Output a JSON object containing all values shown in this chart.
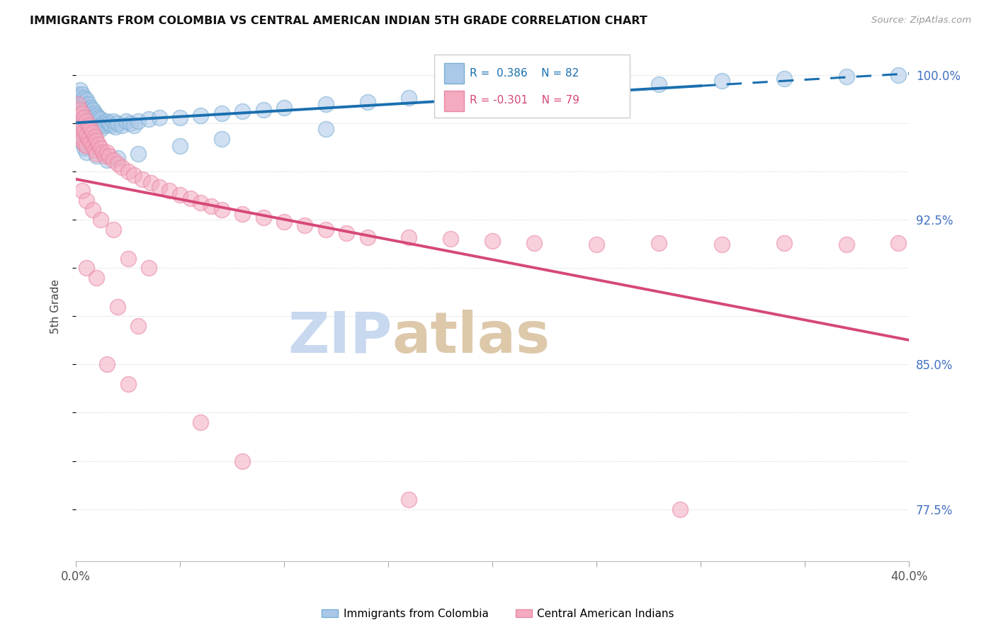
{
  "title": "IMMIGRANTS FROM COLOMBIA VS CENTRAL AMERICAN INDIAN 5TH GRADE CORRELATION CHART",
  "source": "Source: ZipAtlas.com",
  "ylabel": "5th Grade",
  "xlim": [
    0.0,
    0.4
  ],
  "ylim": [
    0.748,
    1.012
  ],
  "R_blue": 0.386,
  "N_blue": 82,
  "R_pink": -0.301,
  "N_pink": 79,
  "blue_face": "#aac8e8",
  "blue_edge": "#7aafd4",
  "pink_face": "#f4aabf",
  "pink_edge": "#e888a4",
  "trend_blue": "#1a6faf",
  "trend_pink": "#d64878",
  "watermark_zip_color": "#c8d8ee",
  "watermark_atlas_color": "#d8c8b8",
  "ytick_vals": [
    0.775,
    0.8,
    0.825,
    0.85,
    0.875,
    0.9,
    0.925,
    0.95,
    0.975,
    1.0
  ],
  "ytick_labels": [
    "77.5%",
    "",
    "",
    "85.0%",
    "",
    "",
    "92.5%",
    "",
    "",
    "100.0%"
  ],
  "xtick_positions": [
    0.0,
    0.05,
    0.1,
    0.15,
    0.2,
    0.25,
    0.3,
    0.35,
    0.4
  ],
  "blue_x": [
    0.001,
    0.001,
    0.001,
    0.001,
    0.002,
    0.002,
    0.002,
    0.002,
    0.002,
    0.003,
    0.003,
    0.003,
    0.003,
    0.004,
    0.004,
    0.004,
    0.004,
    0.005,
    0.005,
    0.005,
    0.005,
    0.006,
    0.006,
    0.006,
    0.007,
    0.007,
    0.007,
    0.008,
    0.008,
    0.008,
    0.009,
    0.009,
    0.01,
    0.01,
    0.011,
    0.011,
    0.012,
    0.012,
    0.013,
    0.014,
    0.015,
    0.016,
    0.017,
    0.018,
    0.019,
    0.02,
    0.022,
    0.024,
    0.026,
    0.028,
    0.03,
    0.035,
    0.04,
    0.05,
    0.06,
    0.07,
    0.08,
    0.09,
    0.1,
    0.12,
    0.14,
    0.16,
    0.18,
    0.2,
    0.22,
    0.25,
    0.28,
    0.31,
    0.34,
    0.37,
    0.395,
    0.002,
    0.003,
    0.004,
    0.005,
    0.01,
    0.015,
    0.02,
    0.03,
    0.05,
    0.07,
    0.12
  ],
  "blue_y": [
    0.99,
    0.985,
    0.98,
    0.975,
    0.992,
    0.988,
    0.983,
    0.978,
    0.973,
    0.99,
    0.985,
    0.98,
    0.975,
    0.988,
    0.982,
    0.978,
    0.972,
    0.987,
    0.982,
    0.977,
    0.972,
    0.985,
    0.98,
    0.976,
    0.983,
    0.978,
    0.974,
    0.982,
    0.977,
    0.973,
    0.98,
    0.976,
    0.979,
    0.974,
    0.978,
    0.973,
    0.977,
    0.972,
    0.975,
    0.974,
    0.976,
    0.975,
    0.974,
    0.976,
    0.973,
    0.975,
    0.974,
    0.976,
    0.975,
    0.974,
    0.976,
    0.977,
    0.978,
    0.978,
    0.979,
    0.98,
    0.981,
    0.982,
    0.983,
    0.985,
    0.986,
    0.988,
    0.989,
    0.99,
    0.991,
    0.993,
    0.995,
    0.997,
    0.998,
    0.999,
    1.0,
    0.968,
    0.965,
    0.962,
    0.96,
    0.958,
    0.956,
    0.957,
    0.959,
    0.963,
    0.967,
    0.972
  ],
  "pink_x": [
    0.001,
    0.001,
    0.001,
    0.002,
    0.002,
    0.002,
    0.003,
    0.003,
    0.003,
    0.004,
    0.004,
    0.004,
    0.005,
    0.005,
    0.005,
    0.006,
    0.006,
    0.007,
    0.007,
    0.008,
    0.008,
    0.009,
    0.009,
    0.01,
    0.01,
    0.011,
    0.012,
    0.013,
    0.014,
    0.015,
    0.016,
    0.018,
    0.02,
    0.022,
    0.025,
    0.028,
    0.032,
    0.036,
    0.04,
    0.045,
    0.05,
    0.055,
    0.06,
    0.065,
    0.07,
    0.08,
    0.09,
    0.1,
    0.11,
    0.12,
    0.13,
    0.14,
    0.16,
    0.18,
    0.2,
    0.22,
    0.25,
    0.28,
    0.31,
    0.34,
    0.37,
    0.395,
    0.003,
    0.005,
    0.008,
    0.012,
    0.018,
    0.025,
    0.035,
    0.005,
    0.01,
    0.02,
    0.03,
    0.015,
    0.025,
    0.06,
    0.08,
    0.16,
    0.29
  ],
  "pink_y": [
    0.985,
    0.978,
    0.972,
    0.982,
    0.975,
    0.968,
    0.98,
    0.973,
    0.966,
    0.978,
    0.971,
    0.964,
    0.976,
    0.969,
    0.963,
    0.974,
    0.967,
    0.972,
    0.965,
    0.97,
    0.963,
    0.968,
    0.961,
    0.966,
    0.959,
    0.964,
    0.962,
    0.96,
    0.958,
    0.96,
    0.958,
    0.956,
    0.954,
    0.952,
    0.95,
    0.948,
    0.946,
    0.944,
    0.942,
    0.94,
    0.938,
    0.936,
    0.934,
    0.932,
    0.93,
    0.928,
    0.926,
    0.924,
    0.922,
    0.92,
    0.918,
    0.916,
    0.916,
    0.915,
    0.914,
    0.913,
    0.912,
    0.913,
    0.912,
    0.913,
    0.912,
    0.913,
    0.94,
    0.935,
    0.93,
    0.925,
    0.92,
    0.905,
    0.9,
    0.9,
    0.895,
    0.88,
    0.87,
    0.85,
    0.84,
    0.82,
    0.8,
    0.78,
    0.775
  ]
}
